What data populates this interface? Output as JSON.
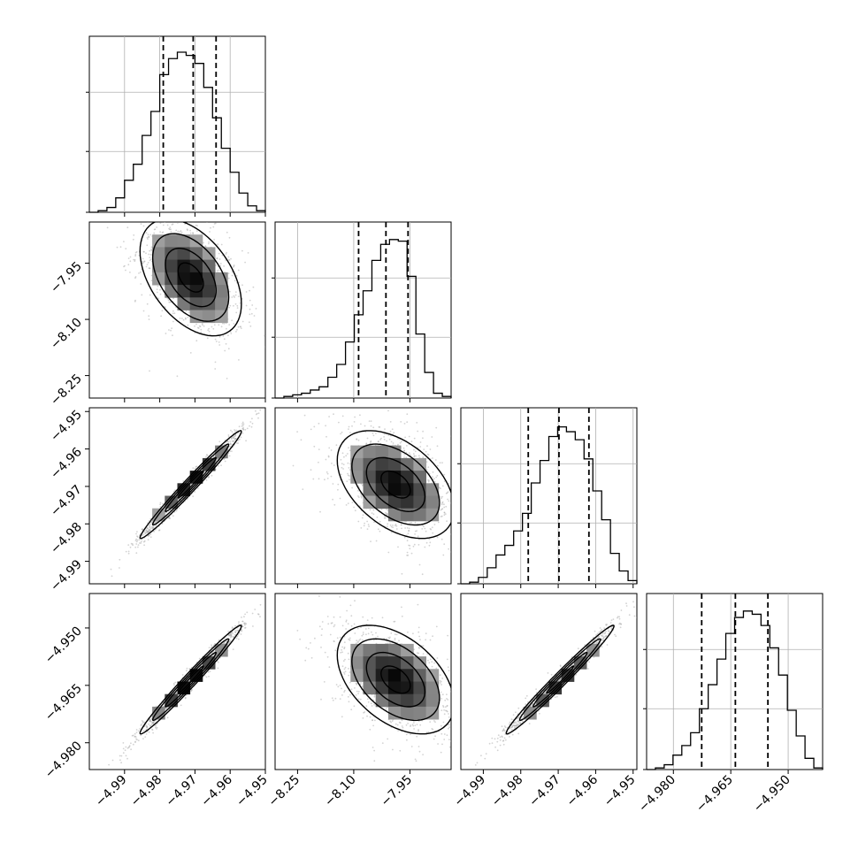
{
  "colors": {
    "background": "#ffffff",
    "line": "#000000",
    "grid": "#b0b0b0",
    "scatter": "#9e9e9e"
  },
  "chart_data": {
    "type": "corner",
    "grid": true,
    "parameters": [
      {
        "label": "",
        "range": [
          -5.0,
          -4.95
        ],
        "ticks": [
          -4.99,
          -4.98,
          -4.97,
          -4.96,
          -4.95
        ],
        "tick_labels": [
          "−4.99",
          "−4.98",
          "−4.97",
          "−4.96",
          "−4.95"
        ],
        "quantiles": [
          -4.979,
          -4.9705,
          -4.964
        ]
      },
      {
        "label": "",
        "range": [
          -8.31,
          -7.84
        ],
        "ticks": [
          -8.25,
          -8.1,
          -7.95
        ],
        "tick_labels": [
          "−8.25",
          "−8.10",
          "−7.95"
        ],
        "quantiles": [
          -8.087,
          -8.014,
          -7.955
        ]
      },
      {
        "label": "",
        "range": [
          -4.996,
          -4.949
        ],
        "ticks": [
          -4.99,
          -4.98,
          -4.97,
          -4.96,
          -4.95
        ],
        "tick_labels": [
          "−4.99",
          "−4.98",
          "−4.97",
          "−4.96",
          "−4.95"
        ],
        "quantiles": [
          -4.978,
          -4.9698,
          -4.9618
        ]
      },
      {
        "label": "",
        "range": [
          -4.987,
          -4.941
        ],
        "ticks": [
          -4.98,
          -4.965,
          -4.95
        ],
        "tick_labels": [
          "−4.980",
          "−4.965",
          "−4.950"
        ],
        "quantiles": [
          -4.9726,
          -4.9638,
          -4.9553
        ]
      }
    ],
    "histograms": [
      [
        0.0,
        0.01,
        0.03,
        0.09,
        0.2,
        0.3,
        0.48,
        0.63,
        0.86,
        0.96,
        1.0,
        0.98,
        0.93,
        0.78,
        0.59,
        0.4,
        0.25,
        0.12,
        0.04,
        0.01
      ],
      [
        0.0,
        0.01,
        0.02,
        0.03,
        0.05,
        0.07,
        0.13,
        0.21,
        0.35,
        0.52,
        0.67,
        0.86,
        0.96,
        0.99,
        0.98,
        0.76,
        0.4,
        0.16,
        0.03,
        0.01
      ],
      [
        0.0,
        0.01,
        0.04,
        0.1,
        0.18,
        0.24,
        0.33,
        0.44,
        0.63,
        0.77,
        0.92,
        0.98,
        0.95,
        0.9,
        0.78,
        0.58,
        0.4,
        0.19,
        0.08,
        0.02
      ],
      [
        0.0,
        0.01,
        0.03,
        0.09,
        0.15,
        0.23,
        0.38,
        0.53,
        0.69,
        0.85,
        0.95,
        0.99,
        0.97,
        0.9,
        0.76,
        0.59,
        0.37,
        0.21,
        0.07,
        0.01
      ]
    ],
    "pairs": [
      {
        "row": 1,
        "col": 0,
        "cx": -4.9712,
        "cy": -7.988,
        "sx": 0.0072,
        "sy": 0.078,
        "rho": -0.45
      },
      {
        "row": 2,
        "col": 0,
        "cx": -4.9712,
        "cy": -4.9695,
        "sx": 0.0072,
        "sy": 0.0072,
        "rho": 0.985
      },
      {
        "row": 2,
        "col": 1,
        "cx": -7.988,
        "cy": -4.9695,
        "sx": 0.078,
        "sy": 0.0072,
        "rho": -0.45
      },
      {
        "row": 3,
        "col": 0,
        "cx": -4.9712,
        "cy": -4.9635,
        "sx": 0.0072,
        "sy": 0.0071,
        "rho": 0.985
      },
      {
        "row": 3,
        "col": 1,
        "cx": -7.988,
        "cy": -4.9635,
        "sx": 0.078,
        "sy": 0.0071,
        "rho": -0.45
      },
      {
        "row": 3,
        "col": 2,
        "cx": -4.9695,
        "cy": -4.9635,
        "sx": 0.0072,
        "sy": 0.0071,
        "rho": 0.985
      }
    ],
    "contour_levels_sigma": [
      0.5,
      1.0,
      1.5,
      2.0
    ]
  }
}
